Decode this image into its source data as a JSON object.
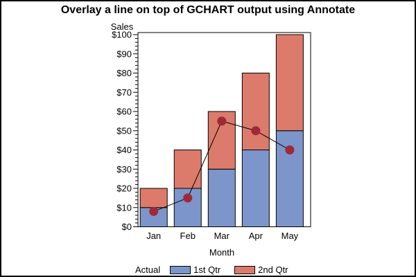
{
  "title": "Overlay a line on top of GCHART output using Annotate",
  "y_axis": {
    "label": "Sales"
  },
  "x_axis": {
    "label": "Month"
  },
  "legend": {
    "title": "Actual",
    "items": [
      {
        "label": "1st Qtr",
        "color": "#7C95CA"
      },
      {
        "label": "2nd Qtr",
        "color": "#DC7B6B"
      }
    ]
  },
  "chart_data": {
    "type": "bar",
    "stacked": true,
    "title": "Overlay a line on top of GCHART output using Annotate",
    "xlabel": "Month",
    "ylabel": "Sales",
    "categories": [
      "Jan",
      "Feb",
      "Mar",
      "Apr",
      "May"
    ],
    "series": [
      {
        "name": "1st Qtr",
        "color": "#7C95CA",
        "values": [
          10,
          20,
          30,
          40,
          50
        ]
      },
      {
        "name": "2nd Qtr",
        "color": "#DC7B6B",
        "values": [
          10,
          20,
          30,
          40,
          50
        ]
      }
    ],
    "stack_totals": [
      20,
      40,
      60,
      80,
      100
    ],
    "overlay_line": {
      "name": "Actual",
      "color": "#000000",
      "marker_color": "#A02837",
      "values": [
        8,
        15,
        55,
        50,
        40
      ]
    },
    "ylim": [
      0,
      100
    ],
    "y_tick_interval": 10,
    "minor_ticks_between_major": 4,
    "y_ticks": [
      "$0",
      "$10",
      "$20",
      "$30",
      "$40",
      "$50",
      "$60",
      "$70",
      "$80",
      "$90",
      "$100"
    ],
    "grid": false,
    "legend_position": "bottom",
    "frame": true
  }
}
